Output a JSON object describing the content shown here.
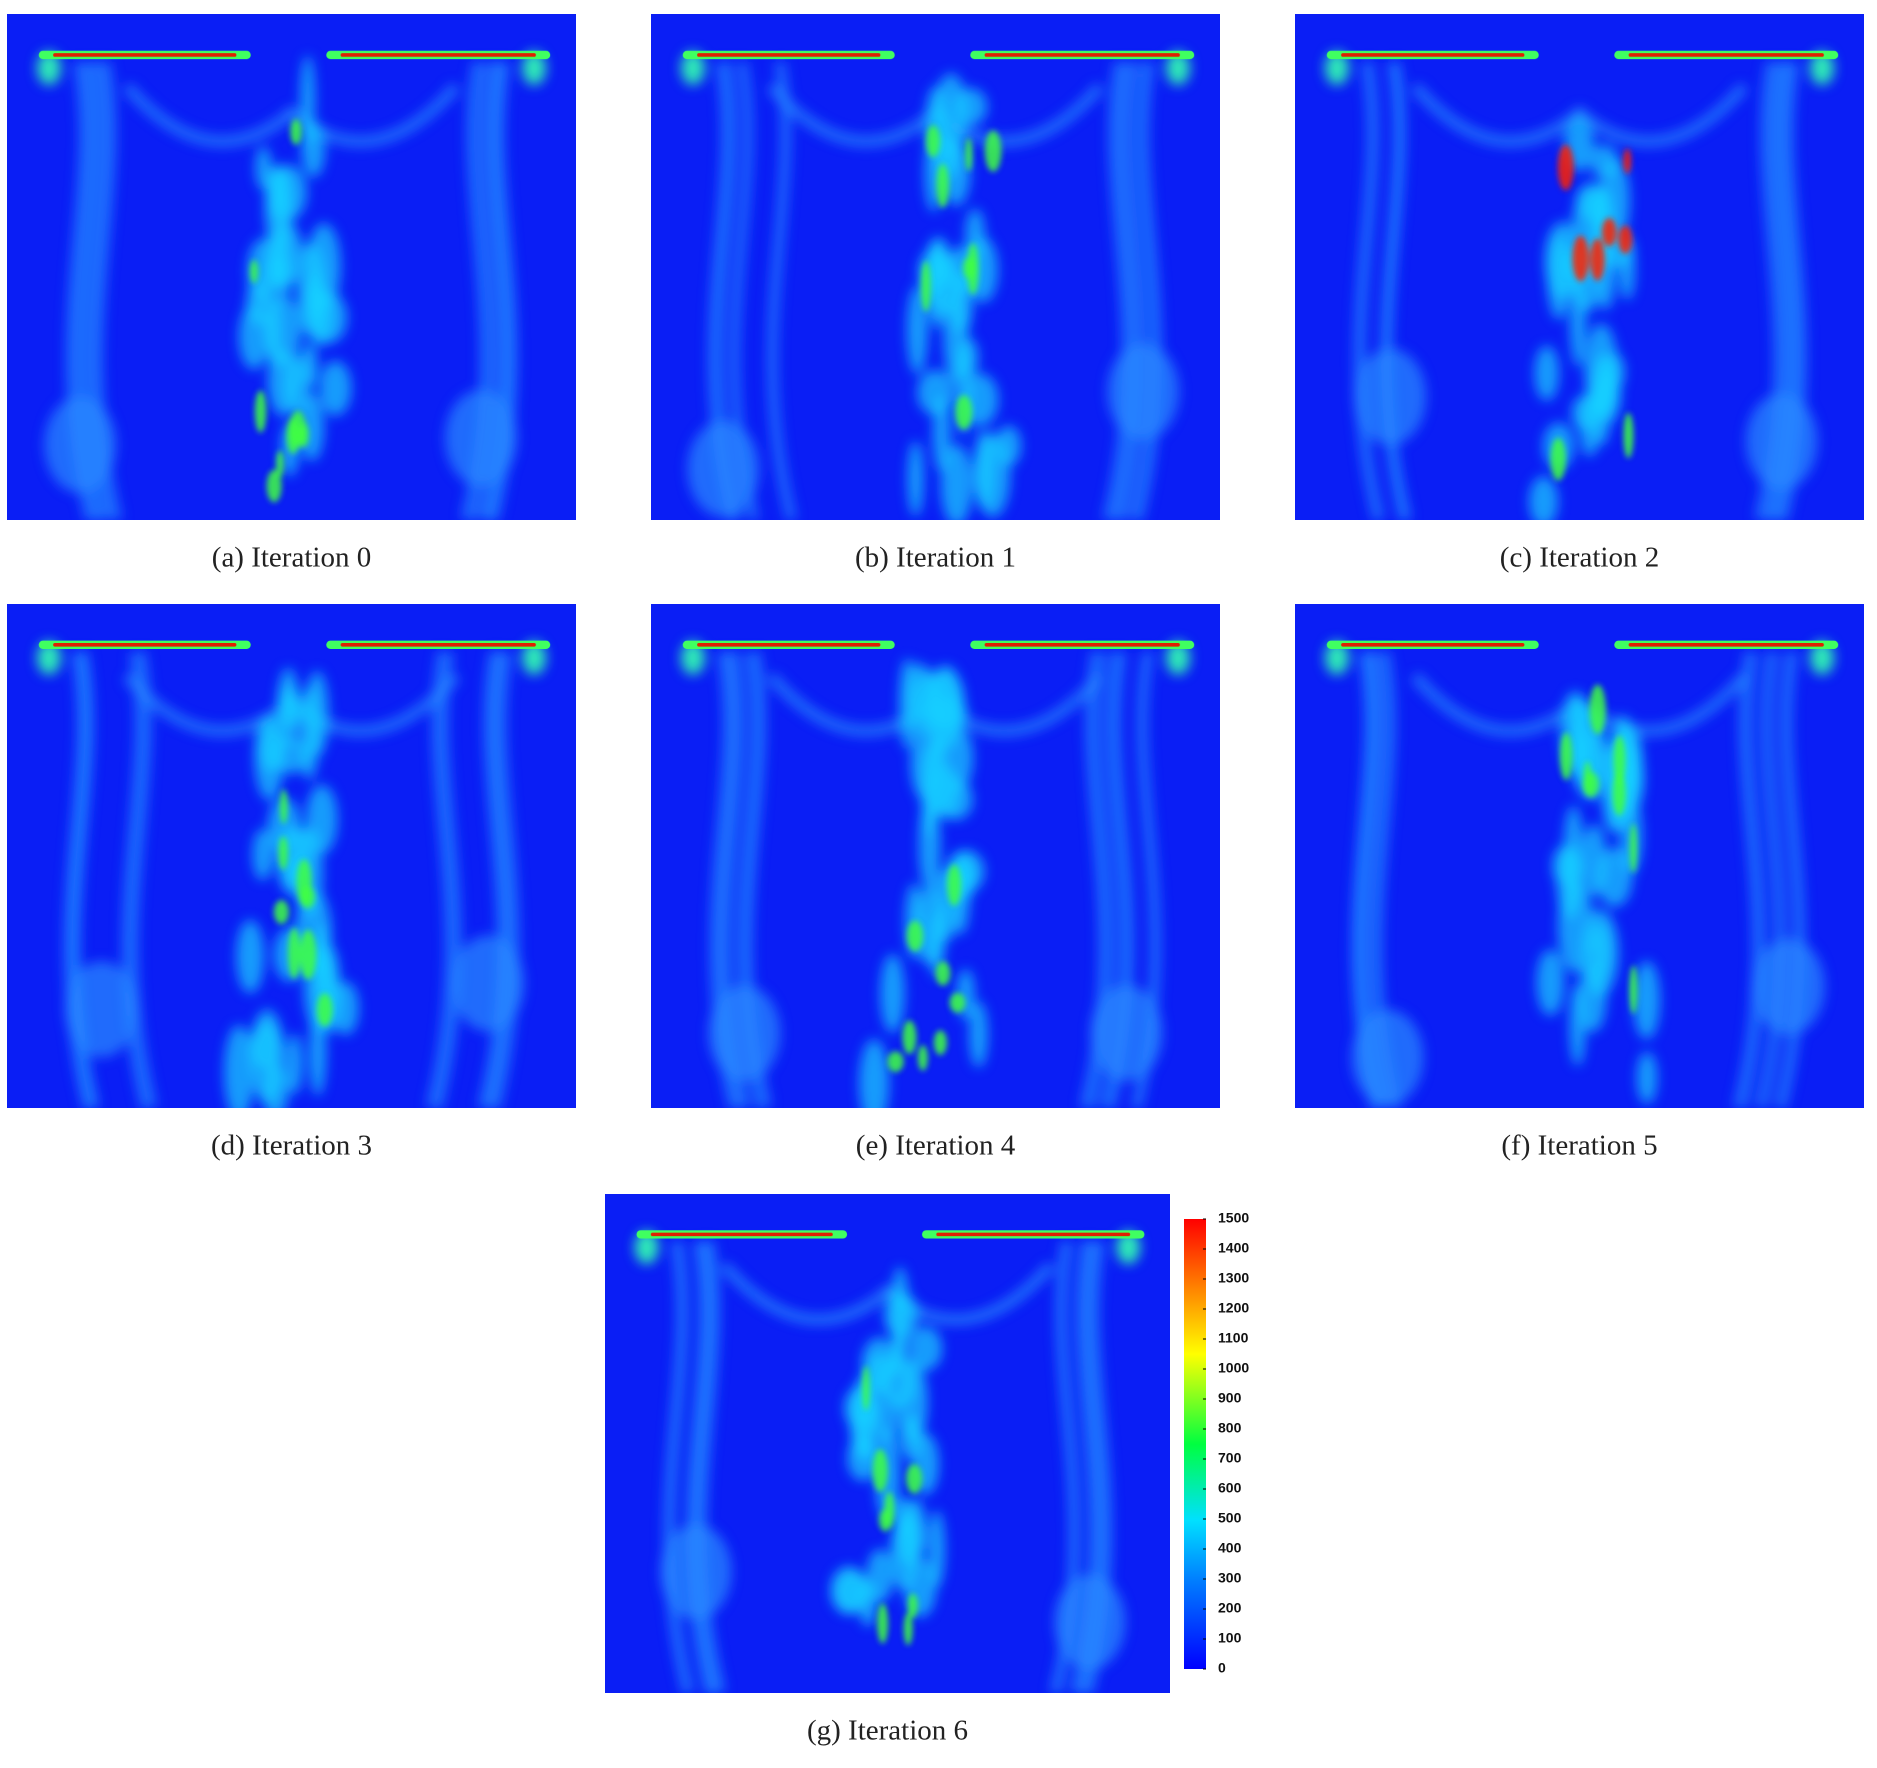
{
  "panels": [
    {
      "caption": "(a) Iteration 0"
    },
    {
      "caption": "(b) Iteration 1"
    },
    {
      "caption": "(c) Iteration 2"
    },
    {
      "caption": "(d) Iteration 3"
    },
    {
      "caption": "(e) Iteration 4"
    },
    {
      "caption": "(f) Iteration 5"
    },
    {
      "caption": "(g) Iteration 6"
    }
  ],
  "colorbar": {
    "range": [
      0,
      1500
    ],
    "ticks": [
      0,
      100,
      200,
      300,
      400,
      500,
      600,
      700,
      800,
      900,
      1000,
      1100,
      1200,
      1300,
      1400,
      1500
    ]
  }
}
